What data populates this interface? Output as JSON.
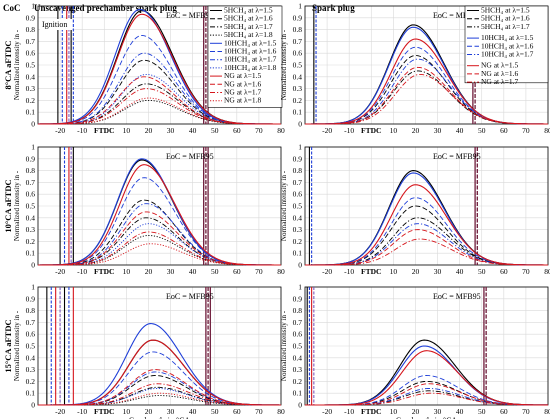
{
  "figure": {
    "coc_label": "CoC",
    "col_titles": [
      "Unscavenged prechamber spark plug",
      "Spark plug"
    ],
    "row_labels": [
      "8°CA aFTDC",
      "10°CA aFTDC",
      "15°CA aFTDC"
    ],
    "ylabel": "Normalized intensity in -",
    "xlabel": "Crankangle in °CA",
    "ftdc_label": "FTDC",
    "eoc_label": "EoC = MFB95",
    "ignition_label": "Ignition",
    "legend_left": [
      {
        "label": "5HCH₄ at  λ=1.5",
        "color": "#000000",
        "dash": "solid"
      },
      {
        "label": "5HCH₄ at  λ=1.6",
        "color": "#000000",
        "dash": "dash"
      },
      {
        "label": "5HCH₄ at  λ=1.7",
        "color": "#000000",
        "dash": "dashdot"
      },
      {
        "label": "5HCH₄ at  λ=1.8",
        "color": "#000000",
        "dash": "dot"
      },
      {
        "label": "10HCH₄ at  λ=1.5",
        "color": "#1f3fd8",
        "dash": "solid"
      },
      {
        "label": "10HCH₄ at  λ=1.6",
        "color": "#1f3fd8",
        "dash": "dash"
      },
      {
        "label": "10HCH₄ at  λ=1.7",
        "color": "#1f3fd8",
        "dash": "dashdot"
      },
      {
        "label": "10HCH₄ at  λ=1.8",
        "color": "#1f3fd8",
        "dash": "dot"
      },
      {
        "label": "NG at  λ=1.5",
        "color": "#d6161c",
        "dash": "solid"
      },
      {
        "label": "NG at  λ=1.6",
        "color": "#d6161c",
        "dash": "dash"
      },
      {
        "label": "NG at  λ=1.7",
        "color": "#d6161c",
        "dash": "dashdot"
      },
      {
        "label": "NG at  λ=1.8",
        "color": "#d6161c",
        "dash": "dot"
      }
    ],
    "legend_right": [
      {
        "label": "5HCH₄ at  λ=1.5",
        "color": "#000000",
        "dash": "solid"
      },
      {
        "label": "5HCH₄ at  λ=1.6",
        "color": "#000000",
        "dash": "dash"
      },
      {
        "label": "5HCH₄ at  λ=1.7",
        "color": "#000000",
        "dash": "dashdot"
      },
      {
        "label": "10HCH₄ at  λ=1.5",
        "color": "#1f3fd8",
        "dash": "solid"
      },
      {
        "label": "10HCH₄ at  λ=1.6",
        "color": "#1f3fd8",
        "dash": "dash"
      },
      {
        "label": "10HCH₄ at  λ=1.7",
        "color": "#1f3fd8",
        "dash": "dashdot"
      },
      {
        "label": "NG at  λ=1.5",
        "color": "#d6161c",
        "dash": "solid"
      },
      {
        "label": "NG at  λ=1.6",
        "color": "#d6161c",
        "dash": "dash"
      },
      {
        "label": "NG at  λ=1.7",
        "color": "#d6161c",
        "dash": "dashdot"
      }
    ]
  },
  "chart_data": [
    {
      "type": "line",
      "panel": "8°CA aFTDC - Unscavenged prechamber spark plug",
      "xlim": [
        -30,
        80
      ],
      "ylim": [
        0,
        1
      ],
      "xticks": [
        -20,
        -10,
        "FTDC",
        10,
        20,
        30,
        40,
        50,
        60,
        70,
        80
      ],
      "yticks": [
        0,
        0.1,
        0.2,
        0.3,
        0.4,
        0.5,
        0.6,
        0.7,
        0.8,
        0.9,
        1
      ],
      "ignition": [
        -21,
        -19,
        -17,
        -16,
        -15,
        -14
      ],
      "eoc": [
        45,
        46,
        47
      ],
      "series": [
        {
          "group": "5HCH4",
          "lambda": 1.5,
          "peak_x": 17,
          "peak": 0.96
        },
        {
          "group": "5HCH4",
          "lambda": 1.6,
          "peak_x": 18,
          "peak": 0.54
        },
        {
          "group": "5HCH4",
          "lambda": 1.7,
          "peak_x": 19,
          "peak": 0.34
        },
        {
          "group": "5HCH4",
          "lambda": 1.8,
          "peak_x": 20,
          "peak": 0.2
        },
        {
          "group": "10HCH4",
          "lambda": 1.5,
          "peak_x": 16,
          "peak": 0.97
        },
        {
          "group": "10HCH4",
          "lambda": 1.6,
          "peak_x": 17,
          "peak": 0.75
        },
        {
          "group": "10HCH4",
          "lambda": 1.7,
          "peak_x": 18,
          "peak": 0.6
        },
        {
          "group": "10HCH4",
          "lambda": 1.8,
          "peak_x": 19,
          "peak": 0.42
        },
        {
          "group": "NG",
          "lambda": 1.5,
          "peak_x": 17,
          "peak": 0.93
        },
        {
          "group": "NG",
          "lambda": 1.6,
          "peak_x": 18,
          "peak": 0.4
        },
        {
          "group": "NG",
          "lambda": 1.7,
          "peak_x": 19,
          "peak": 0.3
        },
        {
          "group": "NG",
          "lambda": 1.8,
          "peak_x": 20,
          "peak": 0.22
        }
      ]
    },
    {
      "type": "line",
      "panel": "8°CA aFTDC - Spark plug",
      "xlim": [
        -30,
        80
      ],
      "ylim": [
        0,
        1
      ],
      "xticks": [
        -20,
        -10,
        "FTDC",
        10,
        20,
        30,
        40,
        50,
        60,
        70,
        80
      ],
      "yticks": [
        0,
        0.1,
        0.2,
        0.3,
        0.4,
        0.5,
        0.6,
        0.7,
        0.8,
        0.9,
        1
      ],
      "ignition": [
        -26,
        -25
      ],
      "eoc": [
        46,
        47
      ],
      "series": [
        {
          "group": "5HCH4",
          "lambda": 1.5,
          "peak_x": 19,
          "peak": 0.84
        },
        {
          "group": "5HCH4",
          "lambda": 1.6,
          "peak_x": 20,
          "peak": 0.58
        },
        {
          "group": "5HCH4",
          "lambda": 1.7,
          "peak_x": 21,
          "peak": 0.45
        },
        {
          "group": "10HCH4",
          "lambda": 1.5,
          "peak_x": 19,
          "peak": 0.82
        },
        {
          "group": "10HCH4",
          "lambda": 1.6,
          "peak_x": 20,
          "peak": 0.65
        },
        {
          "group": "10HCH4",
          "lambda": 1.7,
          "peak_x": 21,
          "peak": 0.55
        },
        {
          "group": "NG",
          "lambda": 1.5,
          "peak_x": 20,
          "peak": 0.72
        },
        {
          "group": "NG",
          "lambda": 1.6,
          "peak_x": 21,
          "peak": 0.48
        },
        {
          "group": "NG",
          "lambda": 1.7,
          "peak_x": 22,
          "peak": 0.42
        }
      ]
    },
    {
      "type": "line",
      "panel": "10°CA aFTDC - Unscavenged prechamber spark plug",
      "xlim": [
        -30,
        80
      ],
      "ylim": [
        0,
        1
      ],
      "xticks": [
        -20,
        -10,
        "FTDC",
        10,
        20,
        30,
        40,
        50,
        60,
        70,
        80
      ],
      "yticks": [
        0,
        0.1,
        0.2,
        0.3,
        0.4,
        0.5,
        0.6,
        0.7,
        0.8,
        0.9,
        1
      ],
      "ignition": [
        -20,
        -18,
        -16,
        -15,
        -14
      ],
      "eoc": [
        45,
        46,
        47
      ],
      "series": [
        {
          "group": "5HCH4",
          "lambda": 1.5,
          "peak_x": 17,
          "peak": 0.89
        },
        {
          "group": "5HCH4",
          "lambda": 1.6,
          "peak_x": 18,
          "peak": 0.55
        },
        {
          "group": "5HCH4",
          "lambda": 1.7,
          "peak_x": 19,
          "peak": 0.4
        },
        {
          "group": "5HCH4",
          "lambda": 1.8,
          "peak_x": 20,
          "peak": 0.25
        },
        {
          "group": "10HCH4",
          "lambda": 1.5,
          "peak_x": 17,
          "peak": 0.9
        },
        {
          "group": "10HCH4",
          "lambda": 1.6,
          "peak_x": 18,
          "peak": 0.74
        },
        {
          "group": "10HCH4",
          "lambda": 1.7,
          "peak_x": 19,
          "peak": 0.52
        },
        {
          "group": "10HCH4",
          "lambda": 1.8,
          "peak_x": 20,
          "peak": 0.35
        },
        {
          "group": "NG",
          "lambda": 1.5,
          "peak_x": 18,
          "peak": 0.85
        },
        {
          "group": "NG",
          "lambda": 1.6,
          "peak_x": 19,
          "peak": 0.45
        },
        {
          "group": "NG",
          "lambda": 1.7,
          "peak_x": 20,
          "peak": 0.28
        },
        {
          "group": "NG",
          "lambda": 1.8,
          "peak_x": 21,
          "peak": 0.18
        }
      ]
    },
    {
      "type": "line",
      "panel": "10°CA aFTDC - Spark plug",
      "xlim": [
        -30,
        80
      ],
      "ylim": [
        0,
        1
      ],
      "xticks": [
        -20,
        -10,
        "FTDC",
        10,
        20,
        30,
        40,
        50,
        60,
        70,
        80
      ],
      "yticks": [
        0,
        0.1,
        0.2,
        0.3,
        0.4,
        0.5,
        0.6,
        0.7,
        0.8,
        0.9,
        1
      ],
      "ignition": [
        -28,
        -27
      ],
      "eoc": [
        47,
        48
      ],
      "series": [
        {
          "group": "5HCH4",
          "lambda": 1.5,
          "peak_x": 19,
          "peak": 0.8
        },
        {
          "group": "5HCH4",
          "lambda": 1.6,
          "peak_x": 20,
          "peak": 0.5
        },
        {
          "group": "5HCH4",
          "lambda": 1.7,
          "peak_x": 21,
          "peak": 0.4
        },
        {
          "group": "10HCH4",
          "lambda": 1.5,
          "peak_x": 19,
          "peak": 0.78
        },
        {
          "group": "10HCH4",
          "lambda": 1.6,
          "peak_x": 20,
          "peak": 0.57
        },
        {
          "group": "10HCH4",
          "lambda": 1.7,
          "peak_x": 21,
          "peak": 0.35
        },
        {
          "group": "NG",
          "lambda": 1.5,
          "peak_x": 20,
          "peak": 0.68
        },
        {
          "group": "NG",
          "lambda": 1.6,
          "peak_x": 21,
          "peak": 0.3
        },
        {
          "group": "NG",
          "lambda": 1.7,
          "peak_x": 22,
          "peak": 0.22
        }
      ]
    },
    {
      "type": "line",
      "panel": "15°CA aFTDC - Unscavenged prechamber spark plug",
      "xlim": [
        -30,
        80
      ],
      "ylim": [
        0,
        1
      ],
      "xticks": [
        -20,
        -10,
        "FTDC",
        10,
        20,
        30,
        40,
        50,
        60,
        70,
        80
      ],
      "yticks": [
        0,
        0.1,
        0.2,
        0.3,
        0.4,
        0.5,
        0.6,
        0.7,
        0.8,
        0.9,
        1
      ],
      "ignition": [
        -26,
        -24,
        -22,
        -20,
        -18,
        -16,
        -14
      ],
      "eoc": [
        46,
        47,
        48
      ],
      "series": [
        {
          "group": "5HCH4",
          "lambda": 1.5,
          "peak_x": 22,
          "peak": 0.55
        },
        {
          "group": "5HCH4",
          "lambda": 1.6,
          "peak_x": 23,
          "peak": 0.25
        },
        {
          "group": "5HCH4",
          "lambda": 1.7,
          "peak_x": 24,
          "peak": 0.15
        },
        {
          "group": "5HCH4",
          "lambda": 1.8,
          "peak_x": 25,
          "peak": 0.08
        },
        {
          "group": "10HCH4",
          "lambda": 1.5,
          "peak_x": 21,
          "peak": 0.69
        },
        {
          "group": "10HCH4",
          "lambda": 1.6,
          "peak_x": 22,
          "peak": 0.45
        },
        {
          "group": "10HCH4",
          "lambda": 1.7,
          "peak_x": 23,
          "peak": 0.28
        },
        {
          "group": "10HCH4",
          "lambda": 1.8,
          "peak_x": 24,
          "peak": 0.14
        },
        {
          "group": "NG",
          "lambda": 1.5,
          "peak_x": 22,
          "peak": 0.55
        },
        {
          "group": "NG",
          "lambda": 1.6,
          "peak_x": 23,
          "peak": 0.3
        },
        {
          "group": "NG",
          "lambda": 1.7,
          "peak_x": 24,
          "peak": 0.18
        },
        {
          "group": "NG",
          "lambda": 1.8,
          "peak_x": 25,
          "peak": 0.1
        }
      ]
    },
    {
      "type": "line",
      "panel": "15°CA aFTDC - Spark plug",
      "xlim": [
        -30,
        80
      ],
      "ylim": [
        0,
        1
      ],
      "xticks": [
        -20,
        -10,
        "FTDC",
        10,
        20,
        30,
        40,
        50,
        60,
        70,
        80
      ],
      "yticks": [
        0,
        0.1,
        0.2,
        0.3,
        0.4,
        0.5,
        0.6,
        0.7,
        0.8,
        0.9,
        1
      ],
      "ignition": [
        -29,
        -28,
        -27,
        -26
      ],
      "eoc": [
        51,
        52
      ],
      "series": [
        {
          "group": "5HCH4",
          "lambda": 1.5,
          "peak_x": 24,
          "peak": 0.55
        },
        {
          "group": "5HCH4",
          "lambda": 1.6,
          "peak_x": 25,
          "peak": 0.2
        },
        {
          "group": "5HCH4",
          "lambda": 1.7,
          "peak_x": 26,
          "peak": 0.12
        },
        {
          "group": "10HCH4",
          "lambda": 1.5,
          "peak_x": 24,
          "peak": 0.5
        },
        {
          "group": "10HCH4",
          "lambda": 1.6,
          "peak_x": 25,
          "peak": 0.25
        },
        {
          "group": "10HCH4",
          "lambda": 1.7,
          "peak_x": 26,
          "peak": 0.14
        },
        {
          "group": "NG",
          "lambda": 1.5,
          "peak_x": 25,
          "peak": 0.46
        },
        {
          "group": "NG",
          "lambda": 1.6,
          "peak_x": 26,
          "peak": 0.18
        },
        {
          "group": "NG",
          "lambda": 1.7,
          "peak_x": 27,
          "peak": 0.1
        }
      ]
    }
  ]
}
